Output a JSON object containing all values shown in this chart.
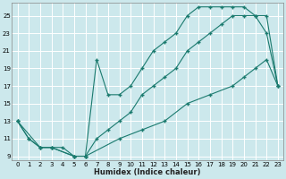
{
  "xlabel": "Humidex (Indice chaleur)",
  "bg_color": "#cce8ec",
  "grid_color": "#ffffff",
  "line_color": "#1a7a6e",
  "xlim": [
    -0.5,
    23.5
  ],
  "ylim": [
    8.5,
    26.5
  ],
  "xticks": [
    0,
    1,
    2,
    3,
    4,
    5,
    6,
    7,
    8,
    9,
    10,
    11,
    12,
    13,
    14,
    15,
    16,
    17,
    18,
    19,
    20,
    21,
    22,
    23
  ],
  "yticks": [
    9,
    11,
    13,
    15,
    17,
    19,
    21,
    23,
    25
  ],
  "series": [
    {
      "x": [
        0,
        1,
        2,
        3,
        5,
        6,
        9,
        11,
        13,
        15,
        17,
        19,
        20,
        21,
        22,
        23
      ],
      "y": [
        13,
        11,
        10,
        10,
        9,
        9,
        11,
        12,
        13,
        15,
        16,
        17,
        18,
        19,
        20,
        17
      ]
    },
    {
      "x": [
        0,
        2,
        3,
        5,
        6,
        7,
        8,
        9,
        10,
        11,
        12,
        13,
        14,
        15,
        16,
        17,
        18,
        19,
        20,
        21,
        22,
        23
      ],
      "y": [
        13,
        10,
        10,
        9,
        9,
        20,
        16,
        16,
        17,
        19,
        21,
        22,
        23,
        25,
        26,
        26,
        26,
        26,
        26,
        25,
        23,
        17
      ]
    },
    {
      "x": [
        0,
        1,
        2,
        3,
        4,
        5,
        6,
        7,
        8,
        9,
        10,
        11,
        12,
        13,
        14,
        15,
        16,
        17,
        18,
        19,
        20,
        21,
        22,
        23
      ],
      "y": [
        13,
        11,
        10,
        10,
        10,
        9,
        9,
        11,
        12,
        13,
        14,
        16,
        17,
        18,
        19,
        21,
        22,
        23,
        24,
        25,
        25,
        25,
        25,
        17
      ]
    }
  ]
}
